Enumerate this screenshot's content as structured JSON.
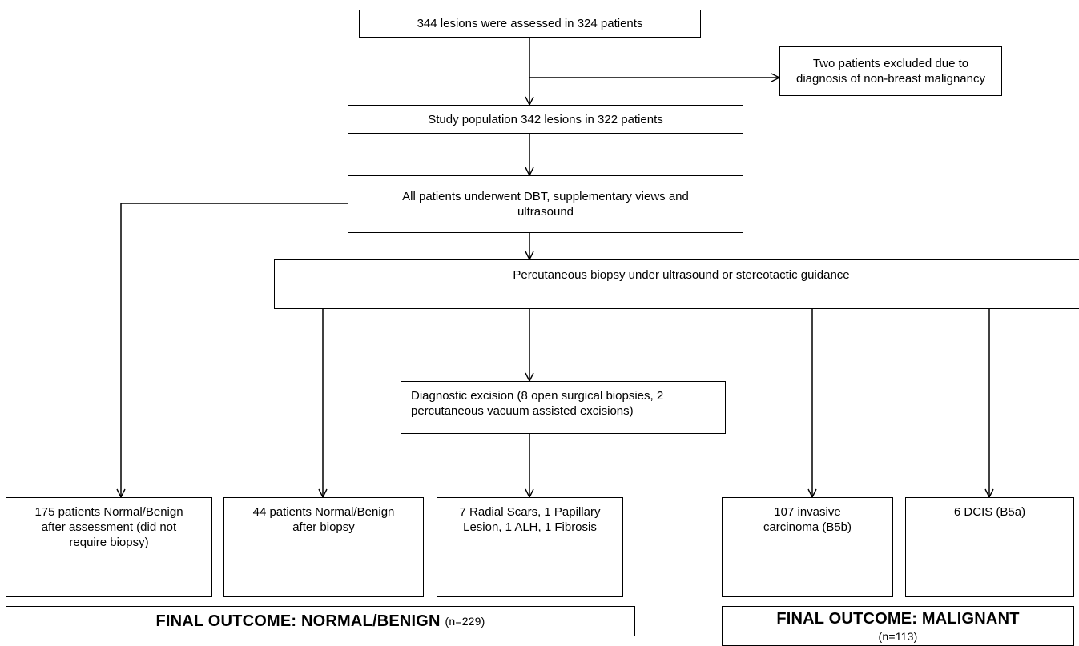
{
  "boxes": {
    "assessed": "344 lesions were assessed in 324 patients",
    "excluded": "Two patients excluded due to diagnosis of non-breast malignancy",
    "study_population": "Study population 342 lesions in 322 patients",
    "dbt": "All patients underwent DBT, supplementary views and ultrasound",
    "biopsy": "Percutaneous biopsy under ultrasound or stereotactic guidance",
    "diagnostic_excision": "Diagnostic excision (8 open surgical biopsies, 2 percutaneous vacuum assisted excisions)",
    "no_biopsy": "175 patients Normal/Benign after assessment (did not require biopsy)",
    "benign_biopsy": "44 patients Normal/Benign after biopsy",
    "radial_scars": "7 Radial Scars, 1 Papillary Lesion, 1 ALH, 1 Fibrosis",
    "invasive": "107 invasive carcinoma (B5b)",
    "dcis": "6 DCIS (B5a)"
  },
  "outcomes": {
    "benign_label": "FINAL OUTCOME: NORMAL/BENIGN",
    "benign_count": "(n=229)",
    "malignant_label": "FINAL OUTCOME: MALIGNANT",
    "malignant_count": "(n=113)"
  },
  "colors": {
    "line": "#000000",
    "background": "#ffffff"
  }
}
